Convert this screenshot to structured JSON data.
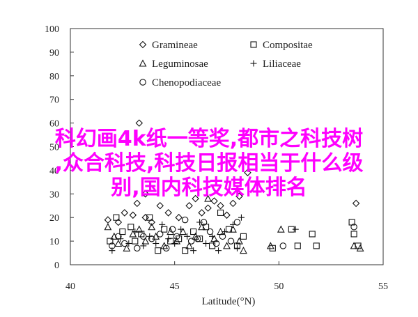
{
  "chart_data": {
    "type": "scatter",
    "title": "",
    "xlabel": "Latitude(°N)",
    "ylabel": "",
    "xlim": [
      40,
      55
    ],
    "ylim": [
      0,
      100
    ],
    "xticks": [
      "40",
      "45",
      "50",
      "55"
    ],
    "yticks": [
      "0",
      "10",
      "20",
      "30",
      "40",
      "50",
      "60",
      "70",
      "80",
      "90",
      "100"
    ],
    "grid": false,
    "legend_position": "top-center",
    "series": [
      {
        "name": "Gramineae",
        "marker": "diamond",
        "points": [
          [
            41.8,
            19
          ],
          [
            42.3,
            18
          ],
          [
            42.6,
            22
          ],
          [
            43.0,
            21
          ],
          [
            43.2,
            26
          ],
          [
            43.3,
            60
          ],
          [
            43.6,
            30
          ],
          [
            43.6,
            20
          ],
          [
            43.9,
            18
          ],
          [
            44.3,
            25
          ],
          [
            44.7,
            22
          ],
          [
            45.2,
            20
          ],
          [
            45.7,
            25
          ],
          [
            46.0,
            28
          ],
          [
            46.3,
            22
          ],
          [
            46.6,
            24
          ],
          [
            46.9,
            27
          ],
          [
            47.2,
            25
          ],
          [
            47.5,
            21
          ],
          [
            47.8,
            26
          ],
          [
            48.1,
            29
          ],
          [
            48.5,
            39
          ],
          [
            53.7,
            26
          ]
        ]
      },
      {
        "name": "Leguminosae",
        "marker": "triangle",
        "points": [
          [
            41.8,
            16
          ],
          [
            42.1,
            12
          ],
          [
            42.3,
            9
          ],
          [
            42.7,
            7
          ],
          [
            43.0,
            13
          ],
          [
            43.3,
            15
          ],
          [
            43.6,
            10
          ],
          [
            43.9,
            16
          ],
          [
            44.1,
            12
          ],
          [
            44.5,
            8
          ],
          [
            44.8,
            14
          ],
          [
            45.1,
            10
          ],
          [
            45.4,
            14
          ],
          [
            45.7,
            8
          ],
          [
            46.0,
            12
          ],
          [
            46.3,
            16
          ],
          [
            46.6,
            28
          ],
          [
            46.9,
            11
          ],
          [
            47.2,
            14
          ],
          [
            47.5,
            8
          ],
          [
            47.8,
            15
          ],
          [
            48.1,
            10
          ],
          [
            48.3,
            6
          ],
          [
            49.6,
            8
          ],
          [
            50.1,
            15
          ],
          [
            53.6,
            8
          ],
          [
            53.9,
            7
          ]
        ]
      },
      {
        "name": "Chenopodiaceae",
        "marker": "circle",
        "points": [
          [
            42.0,
            8
          ],
          [
            42.3,
            12
          ],
          [
            42.6,
            9
          ],
          [
            43.2,
            7
          ],
          [
            43.5,
            12
          ],
          [
            43.9,
            11
          ],
          [
            44.3,
            13
          ],
          [
            44.6,
            7
          ],
          [
            44.9,
            15
          ],
          [
            45.1,
            12
          ],
          [
            45.5,
            19
          ],
          [
            45.8,
            10
          ],
          [
            46.1,
            11
          ],
          [
            46.4,
            18
          ],
          [
            46.7,
            14
          ],
          [
            47.0,
            9
          ],
          [
            47.3,
            12
          ],
          [
            47.7,
            10
          ],
          [
            48.0,
            18
          ],
          [
            50.2,
            8
          ],
          [
            53.6,
            16
          ]
        ]
      },
      {
        "name": "Compositae",
        "marker": "square",
        "points": [
          [
            41.9,
            10
          ],
          [
            42.2,
            20
          ],
          [
            42.5,
            14
          ],
          [
            42.9,
            16
          ],
          [
            43.1,
            10
          ],
          [
            43.4,
            13
          ],
          [
            43.8,
            20
          ],
          [
            44.2,
            6
          ],
          [
            44.5,
            15
          ],
          [
            44.8,
            10
          ],
          [
            45.2,
            11
          ],
          [
            45.5,
            6
          ],
          [
            45.9,
            14
          ],
          [
            46.2,
            11
          ],
          [
            46.5,
            16
          ],
          [
            46.8,
            8
          ],
          [
            47.2,
            22
          ],
          [
            47.6,
            15
          ],
          [
            48.0,
            8
          ],
          [
            48.3,
            12
          ],
          [
            49.7,
            7
          ],
          [
            50.6,
            15
          ],
          [
            50.9,
            8
          ],
          [
            51.6,
            13
          ],
          [
            51.8,
            8
          ],
          [
            53.5,
            18
          ],
          [
            53.6,
            13
          ],
          [
            53.8,
            8
          ]
        ]
      },
      {
        "name": "Liliaceae",
        "marker": "plus",
        "points": [
          [
            42.0,
            6
          ],
          [
            42.4,
            11
          ],
          [
            42.8,
            9
          ],
          [
            43.1,
            14
          ],
          [
            43.5,
            8
          ],
          [
            43.8,
            12
          ],
          [
            44.1,
            9
          ],
          [
            44.4,
            17
          ],
          [
            44.7,
            11
          ],
          [
            45.0,
            9
          ],
          [
            45.3,
            15
          ],
          [
            45.6,
            12
          ],
          [
            45.9,
            6
          ],
          [
            46.2,
            18
          ],
          [
            46.5,
            9
          ],
          [
            46.8,
            12
          ],
          [
            47.1,
            6
          ],
          [
            47.4,
            14
          ],
          [
            47.8,
            17
          ],
          [
            48.0,
            7
          ],
          [
            48.2,
            20
          ],
          [
            50.8,
            15
          ]
        ]
      }
    ]
  },
  "legend": {
    "entries": [
      {
        "symbol": "diamond",
        "label": "Gramineae"
      },
      {
        "symbol": "square",
        "label": "Compositae"
      },
      {
        "symbol": "triangle",
        "label": "Leguminosae"
      },
      {
        "symbol": "plus",
        "label": "Liliaceae"
      },
      {
        "symbol": "circle",
        "label": "Chenopodiaceae"
      }
    ]
  },
  "overlay": {
    "lines": [
      "科幻画4k纸一等奖,都市之科技树",
      ",众合科技,科技日报相当于什么级",
      "别,国内科技媒体排名"
    ],
    "color": "#ff00ff"
  }
}
